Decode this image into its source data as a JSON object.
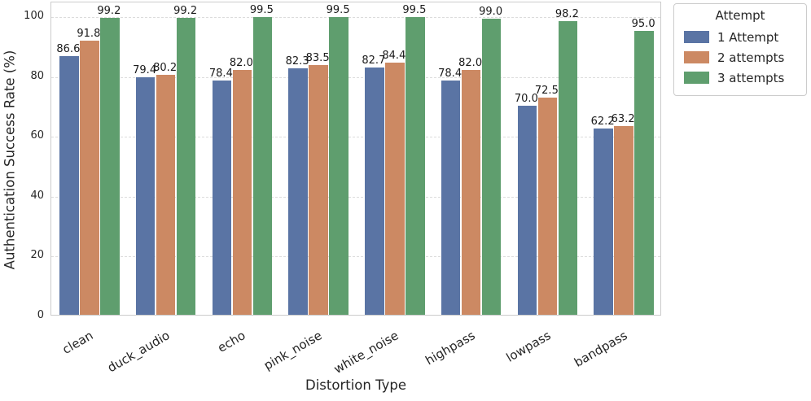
{
  "chart_data": {
    "type": "bar",
    "title": "",
    "xlabel": "Distortion Type",
    "ylabel": "Authentication Success Rate (%)",
    "ylim": [
      0,
      105
    ],
    "yticks": [
      0,
      20,
      40,
      60,
      80,
      100
    ],
    "grid": "horizontal-dashed",
    "categories": [
      "clean",
      "duck_audio",
      "echo",
      "pink_noise",
      "white_noise",
      "highpass",
      "lowpass",
      "bandpass"
    ],
    "series": [
      {
        "name": "1 Attempt",
        "color": "#5a74a4",
        "values": [
          86.6,
          79.4,
          78.4,
          82.3,
          82.7,
          78.4,
          70.0,
          62.2
        ]
      },
      {
        "name": "2 attempts",
        "color": "#cc8963",
        "values": [
          91.8,
          80.2,
          82.0,
          83.5,
          84.4,
          82.0,
          72.5,
          63.2
        ]
      },
      {
        "name": "3 attempts",
        "color": "#5f9e6e",
        "values": [
          99.2,
          99.2,
          99.5,
          99.5,
          99.5,
          99.0,
          98.2,
          95.0
        ]
      }
    ],
    "legend": {
      "title": "Attempt",
      "position": "outside-upper-right"
    },
    "value_label_decimals": 1
  },
  "colors": {
    "gridline": "#dcdcdc",
    "spine": "#cccccc",
    "text": "#262626",
    "background": "#ffffff"
  }
}
